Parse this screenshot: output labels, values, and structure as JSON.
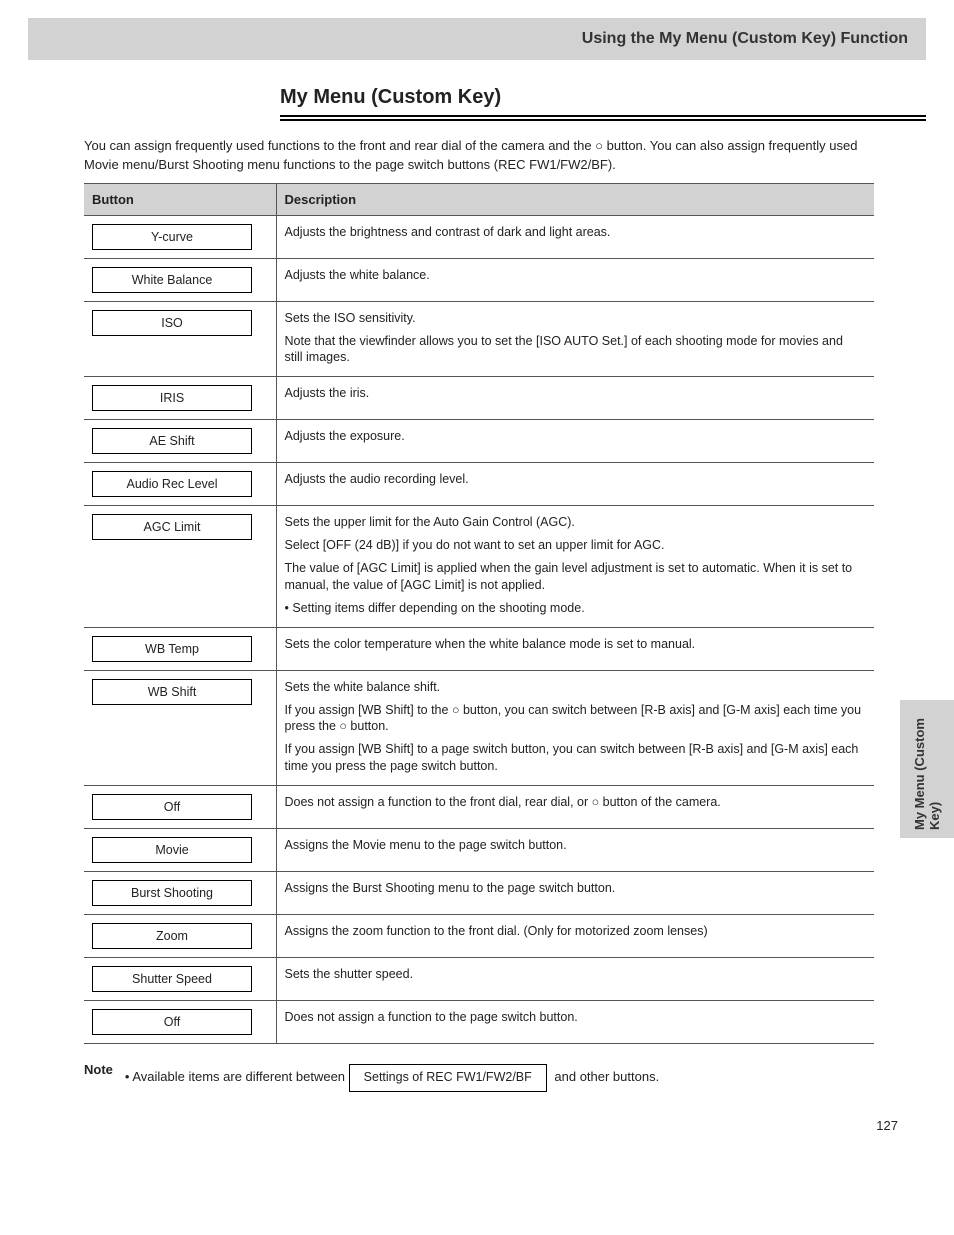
{
  "header": {
    "title": "Using the My Menu (Custom Key) Function"
  },
  "section": {
    "title": "My Menu (Custom Key)"
  },
  "intro": "You can assign frequently used functions to the front and rear dial of the camera and the ○ button. You can also assign frequently used Movie menu/Burst Shooting menu functions to the page switch buttons (REC FW1/FW2/BF).",
  "sideTab": "My Menu (Custom Key)",
  "pageNumber": "127",
  "table": {
    "headers": [
      "Button",
      "Description"
    ],
    "rows": [
      {
        "button": "Y-curve",
        "descLines": [
          "Adjusts the brightness and contrast of dark and light areas."
        ]
      },
      {
        "button": "White Balance",
        "descLines": [
          "Adjusts the white balance."
        ]
      },
      {
        "button": "ISO",
        "descLines": [
          "Sets the ISO sensitivity.",
          "Note that the viewfinder allows you to set the [ISO AUTO Set.] of each shooting mode for movies and still images."
        ]
      },
      {
        "button": "IRIS",
        "descLines": [
          "Adjusts the iris."
        ]
      },
      {
        "button": "AE Shift",
        "descLines": [
          "Adjusts the exposure."
        ]
      },
      {
        "button": "Audio Rec Level",
        "descLines": [
          "Adjusts the audio recording level."
        ]
      },
      {
        "button": "AGC Limit",
        "descLines": [
          "Sets the upper limit for the Auto Gain Control (AGC).",
          "Select [OFF (24 dB)] if you do not want to set an upper limit for AGC.",
          "The value of [AGC Limit] is applied when the gain level adjustment is set to automatic. When it is set to manual, the value of [AGC Limit] is not applied.",
          "• Setting items differ depending on the shooting mode."
        ]
      },
      {
        "button": "WB Temp",
        "descLines": [
          "Sets the color temperature when the white balance mode is set to manual."
        ]
      },
      {
        "button": "WB Shift",
        "descLines": [
          "Sets the white balance shift.",
          "If you assign [WB Shift] to the ○ button, you can switch between [R-B axis] and [G-M axis] each time you press the ○ button.",
          "If you assign [WB Shift] to a page switch button, you can switch between [R-B axis] and [G-M axis] each time you press the page switch button."
        ]
      },
      {
        "button": "Off",
        "descLines": [
          "Does not assign a function to the front dial, rear dial, or ○ button of the camera."
        ]
      },
      {
        "button": "Movie",
        "descLines": [
          "Assigns the Movie menu to the page switch button."
        ]
      },
      {
        "button": "Burst Shooting",
        "descLines": [
          "Assigns the Burst Shooting menu to the page switch button."
        ]
      },
      {
        "button": "Zoom",
        "descLines": [
          "Assigns the zoom function to the front dial. (Only for motorized zoom lenses)"
        ]
      },
      {
        "button": "Shutter Speed",
        "descLines": [
          "Sets the shutter speed."
        ]
      },
      {
        "button": "Off",
        "descLines": [
          "Does not assign a function to the page switch button."
        ]
      }
    ]
  },
  "footnote": {
    "label": "Note",
    "lines": [
      "• Available items are different between",
      " and other buttons."
    ],
    "inlineButton": "Settings of REC FW1/FW2/BF"
  },
  "colors": {
    "headerBg": "#d2d2d2",
    "tableHeaderBg": "#d2d2d2",
    "sideTabBg": "#d2d2d2",
    "border": "#555555",
    "text": "#222222"
  },
  "fonts": {
    "body_pt": 10,
    "sectionTitle_pt": 15
  }
}
